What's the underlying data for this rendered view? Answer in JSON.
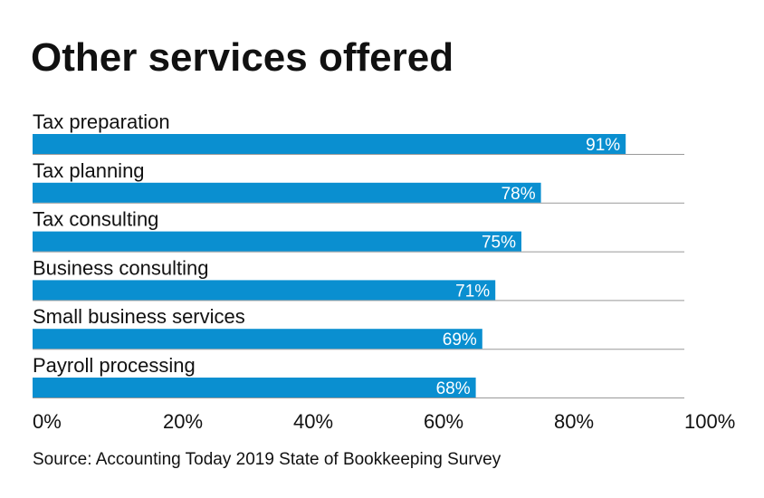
{
  "chart_data": {
    "type": "hbar",
    "title": "Other services offered",
    "categories": [
      "Tax preparation",
      "Tax planning",
      "Tax consulting",
      "Business consulting",
      "Small business services",
      "Payroll processing"
    ],
    "values": [
      91,
      78,
      75,
      71,
      69,
      68
    ],
    "value_labels": [
      "91%",
      "78%",
      "75%",
      "71%",
      "69%",
      "68%"
    ],
    "color": "#0a8fd0",
    "xlim": [
      0,
      100
    ],
    "xticks": [
      {
        "value": 0,
        "label": "0%"
      },
      {
        "value": 20,
        "label": "20%"
      },
      {
        "value": 40,
        "label": "40%"
      },
      {
        "value": 60,
        "label": "60%"
      },
      {
        "value": 80,
        "label": "80%"
      },
      {
        "value": 100,
        "label": "100%"
      }
    ],
    "source": "Source: Accounting Today 2019 State of Bookkeeping Survey"
  }
}
